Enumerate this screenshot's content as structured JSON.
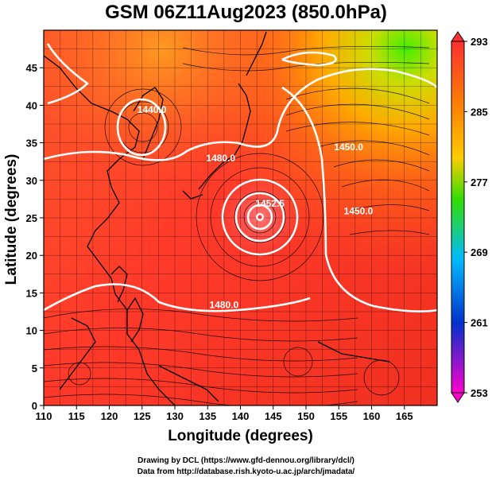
{
  "title": "GSM 06Z11Aug2023 (850.0hPa)",
  "xlabel": "Longitude (degrees)",
  "ylabel": "Latitude  (degrees)",
  "credits": {
    "line1": "Drawing by DCL (https://www.gfd-dennou.org/library/dcl/)",
    "line2": "Data from http://database.rish.kyoto-u.ac.jp/arch/jmadata/"
  },
  "chart_data": {
    "type": "heatmap",
    "x_ticks": [
      "110",
      "115",
      "120",
      "125",
      "130",
      "135",
      "140",
      "145",
      "150",
      "155",
      "160",
      "165"
    ],
    "y_ticks": [
      "0",
      "5",
      "10",
      "15",
      "20",
      "25",
      "30",
      "35",
      "40",
      "45"
    ],
    "xlim": [
      110,
      170
    ],
    "ylim": [
      0,
      50
    ],
    "grid": true,
    "colorbar": {
      "ticks": [
        "293",
        "285",
        "277",
        "269",
        "261",
        "253"
      ],
      "range": [
        253,
        293
      ],
      "colors": [
        "#ff4040",
        "#ff8800",
        "#ffcc00",
        "#33dd00",
        "#00bbff",
        "#0033cc",
        "#ff00cc"
      ]
    },
    "contour_labels": [
      {
        "text": "1480.0",
        "lon": 137,
        "lat": 32.5
      },
      {
        "text": "1480.0",
        "lon": 137.5,
        "lat": 13
      },
      {
        "text": "1450.0",
        "lon": 156.5,
        "lat": 34
      },
      {
        "text": "1450.0",
        "lon": 158,
        "lat": 25.5
      },
      {
        "text": "1452.5",
        "lon": 144.5,
        "lat": 26.5
      },
      {
        "text": "1440.0",
        "lon": 126.5,
        "lat": 39
      }
    ],
    "typhoon_center": {
      "lon": 142.5,
      "lat": 27.2
    }
  }
}
